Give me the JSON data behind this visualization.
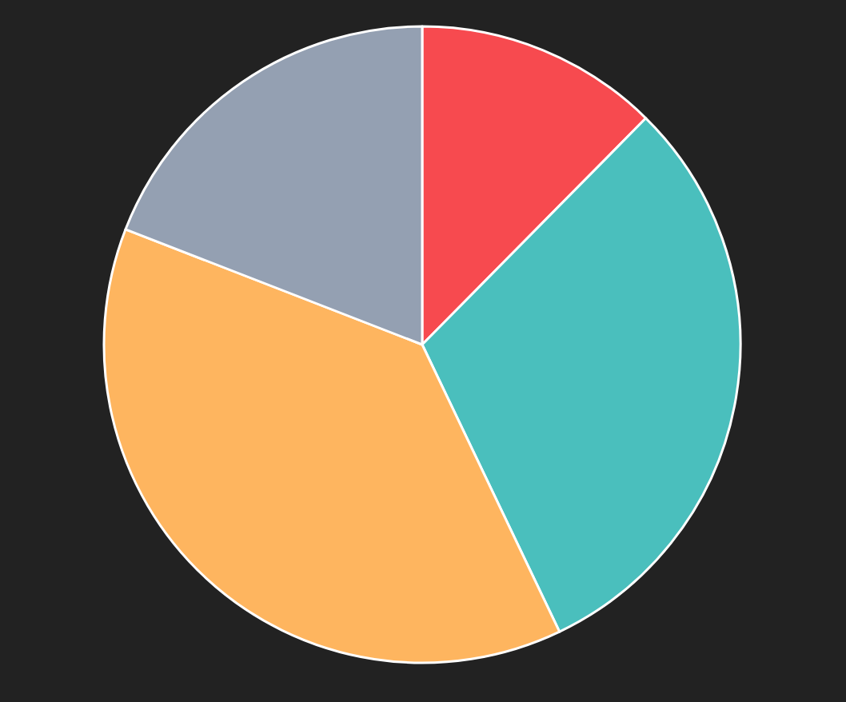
{
  "chart_data": {
    "type": "pie",
    "categories": [
      null,
      null,
      null,
      null
    ],
    "values": [
      12.4,
      30.5,
      38.0,
      19.1
    ],
    "colors": [
      "#f74a4f",
      "#4abfbd",
      "#feb55f",
      "#94a0b2"
    ]
  }
}
